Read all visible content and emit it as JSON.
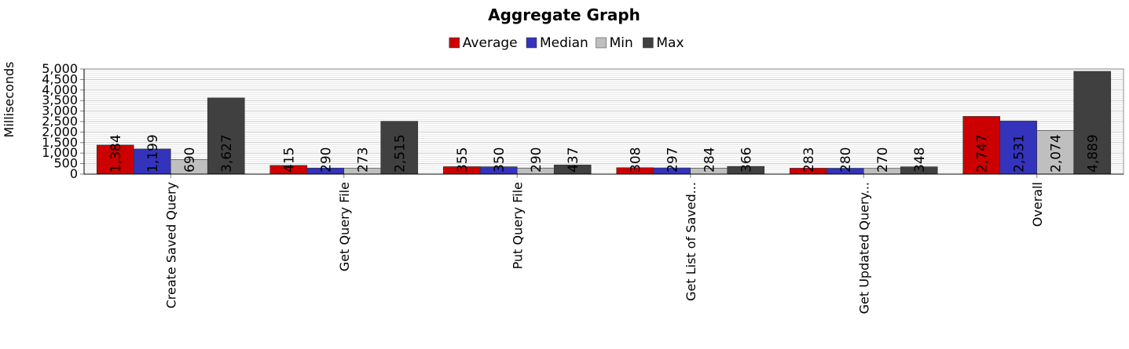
{
  "chart_data": {
    "type": "bar",
    "title": "Aggregate Graph",
    "ylabel": "Milliseconds",
    "xlabel": "",
    "ylim": [
      0,
      5000
    ],
    "yticks": [
      0,
      500,
      1000,
      1500,
      2000,
      2500,
      3000,
      3500,
      4000,
      4500,
      5000
    ],
    "ytick_labels": [
      "0",
      "500",
      "1,000",
      "1,500",
      "2,000",
      "2,500",
      "3,000",
      "3,500",
      "4,000",
      "4,500",
      "5,000"
    ],
    "grid": true,
    "legend_position": "top-center",
    "categories": [
      "Create Saved Query",
      "Get Query File",
      "Put Query File",
      "Get List of Saved...",
      "Get Updated Query...",
      "Overall"
    ],
    "series": [
      {
        "name": "Average",
        "color": "#cc0000",
        "values": [
          1384,
          415,
          355,
          308,
          283,
          2747
        ],
        "labels": [
          "1,384",
          "415",
          "355",
          "308",
          "283",
          "2,747"
        ]
      },
      {
        "name": "Median",
        "color": "#3333bb",
        "values": [
          1199,
          290,
          350,
          297,
          280,
          2531
        ],
        "labels": [
          "1,199",
          "290",
          "350",
          "297",
          "280",
          "2,531"
        ]
      },
      {
        "name": "Min",
        "color": "#bfbfbf",
        "values": [
          690,
          273,
          290,
          284,
          270,
          2074
        ],
        "labels": [
          "690",
          "273",
          "290",
          "284",
          "270",
          "2,074"
        ]
      },
      {
        "name": "Max",
        "color": "#404040",
        "values": [
          3627,
          2515,
          437,
          366,
          348,
          4889
        ],
        "labels": [
          "3,627",
          "2,515",
          "437",
          "366",
          "348",
          "4,889"
        ]
      }
    ]
  }
}
